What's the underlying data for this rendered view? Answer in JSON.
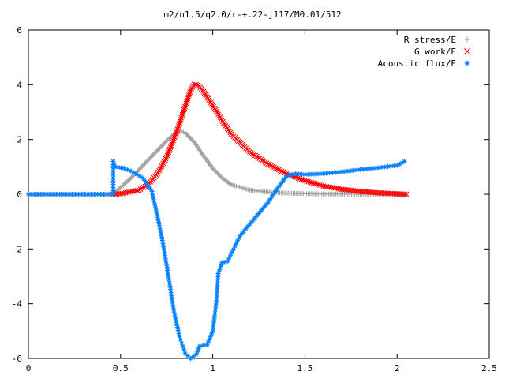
{
  "chart_data": {
    "type": "scatter",
    "title": "m2/n1.5/q2.0/r-+.22-j117/M0.01/512",
    "xlabel": "",
    "ylabel": "",
    "xlim": [
      0,
      2.5
    ],
    "ylim": [
      -6,
      6
    ],
    "x_ticks": [
      "0",
      "0.5",
      "1",
      "1.5",
      "2",
      "2.5"
    ],
    "y_ticks": [
      "-6",
      "-4",
      "-2",
      "0",
      "2",
      "4",
      "6"
    ],
    "grid": false,
    "legend_position": "top-right",
    "series": [
      {
        "name": "R stress/E",
        "marker": "+",
        "color": "#a0a0a0",
        "points": [
          [
            0.0,
            0.0
          ],
          [
            0.46,
            0.0
          ],
          [
            0.5,
            0.25
          ],
          [
            0.55,
            0.55
          ],
          [
            0.6,
            0.9
          ],
          [
            0.65,
            1.25
          ],
          [
            0.7,
            1.6
          ],
          [
            0.75,
            1.95
          ],
          [
            0.8,
            2.25
          ],
          [
            0.83,
            2.3
          ],
          [
            0.85,
            2.25
          ],
          [
            0.9,
            1.9
          ],
          [
            0.95,
            1.4
          ],
          [
            1.0,
            0.95
          ],
          [
            1.05,
            0.6
          ],
          [
            1.1,
            0.35
          ],
          [
            1.2,
            0.15
          ],
          [
            1.3,
            0.08
          ],
          [
            1.4,
            0.04
          ],
          [
            1.5,
            0.02
          ],
          [
            1.6,
            0.01
          ],
          [
            1.8,
            0.0
          ],
          [
            2.05,
            0.0
          ]
        ]
      },
      {
        "name": "G work/E",
        "marker": "x",
        "color": "#ff0000",
        "points": [
          [
            0.46,
            0.0
          ],
          [
            0.5,
            0.02
          ],
          [
            0.6,
            0.15
          ],
          [
            0.65,
            0.35
          ],
          [
            0.7,
            0.75
          ],
          [
            0.75,
            1.35
          ],
          [
            0.8,
            2.2
          ],
          [
            0.85,
            3.2
          ],
          [
            0.88,
            3.8
          ],
          [
            0.9,
            4.02
          ],
          [
            0.92,
            4.0
          ],
          [
            0.95,
            3.75
          ],
          [
            1.0,
            3.25
          ],
          [
            1.05,
            2.7
          ],
          [
            1.1,
            2.2
          ],
          [
            1.2,
            1.55
          ],
          [
            1.3,
            1.1
          ],
          [
            1.4,
            0.75
          ],
          [
            1.5,
            0.5
          ],
          [
            1.6,
            0.3
          ],
          [
            1.7,
            0.18
          ],
          [
            1.8,
            0.1
          ],
          [
            1.9,
            0.05
          ],
          [
            2.05,
            0.0
          ]
        ]
      },
      {
        "name": "Acoustic flux/E",
        "marker": "*",
        "color": "#0080ff",
        "points": [
          [
            0.0,
            0.0
          ],
          [
            0.46,
            0.0
          ],
          [
            0.46,
            1.2
          ],
          [
            0.47,
            1.0
          ],
          [
            0.52,
            0.95
          ],
          [
            0.57,
            0.8
          ],
          [
            0.62,
            0.6
          ],
          [
            0.67,
            0.1
          ],
          [
            0.7,
            -0.8
          ],
          [
            0.73,
            -1.8
          ],
          [
            0.76,
            -3.0
          ],
          [
            0.79,
            -4.3
          ],
          [
            0.82,
            -5.2
          ],
          [
            0.85,
            -5.8
          ],
          [
            0.88,
            -6.0
          ],
          [
            0.91,
            -5.85
          ],
          [
            0.93,
            -5.55
          ],
          [
            0.97,
            -5.5
          ],
          [
            1.0,
            -5.0
          ],
          [
            1.02,
            -3.9
          ],
          [
            1.03,
            -2.9
          ],
          [
            1.05,
            -2.5
          ],
          [
            1.08,
            -2.45
          ],
          [
            1.12,
            -1.9
          ],
          [
            1.15,
            -1.5
          ],
          [
            1.2,
            -1.1
          ],
          [
            1.25,
            -0.7
          ],
          [
            1.3,
            -0.3
          ],
          [
            1.35,
            0.2
          ],
          [
            1.4,
            0.65
          ],
          [
            1.45,
            0.75
          ],
          [
            1.5,
            0.72
          ],
          [
            1.6,
            0.75
          ],
          [
            1.7,
            0.82
          ],
          [
            1.8,
            0.9
          ],
          [
            1.9,
            0.97
          ],
          [
            2.0,
            1.05
          ],
          [
            2.04,
            1.2
          ]
        ]
      }
    ]
  }
}
